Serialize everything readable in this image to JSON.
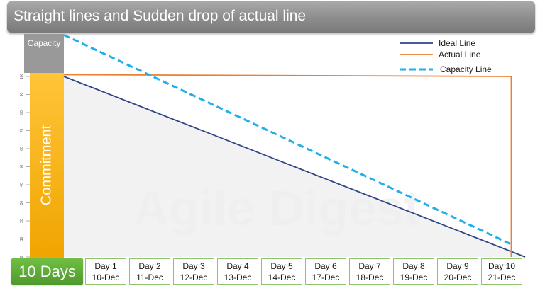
{
  "title": "Straight lines and Sudden drop of actual line",
  "capacity_label": "Capacity",
  "commitment_label": "Commitment",
  "duration_label": "10 Days",
  "watermark": "Agile Digest",
  "colors": {
    "ideal": "#2e4686",
    "actual": "#ed7d31",
    "capacity": "#1fb0e8",
    "commitment": "#f4b000",
    "duration_box": "#5ca833"
  },
  "chart_data": {
    "type": "line",
    "title": "Straight lines and Sudden drop of actual line",
    "categories": [
      {
        "day": "Day 1",
        "date": "10-Dec"
      },
      {
        "day": "Day 2",
        "date": "11-Dec"
      },
      {
        "day": "Day 3",
        "date": "12-Dec"
      },
      {
        "day": "Day 4",
        "date": "13-Dec"
      },
      {
        "day": "Day 5",
        "date": "14-Dec"
      },
      {
        "day": "Day 6",
        "date": "17-Dec"
      },
      {
        "day": "Day 7",
        "date": "18-Dec"
      },
      {
        "day": "Day 8",
        "date": "19-Dec"
      },
      {
        "day": "Day 9",
        "date": "20-Dec"
      },
      {
        "day": "Day 10",
        "date": "21-Dec"
      }
    ],
    "y_ticks": [
      0,
      10,
      20,
      30,
      40,
      50,
      60,
      70,
      80,
      90,
      100
    ],
    "ylim": [
      0,
      100
    ],
    "series": [
      {
        "name": "Ideal Line",
        "x": [
          0,
          10
        ],
        "y": [
          100,
          0
        ]
      },
      {
        "name": "Actual Line",
        "x": [
          0,
          9.7,
          9.7
        ],
        "y": [
          101,
          100,
          0
        ]
      },
      {
        "name": "Capacity Line",
        "x": [
          0,
          9.7
        ],
        "y": [
          123,
          7
        ]
      }
    ],
    "legend": "top-right",
    "grid": false
  }
}
